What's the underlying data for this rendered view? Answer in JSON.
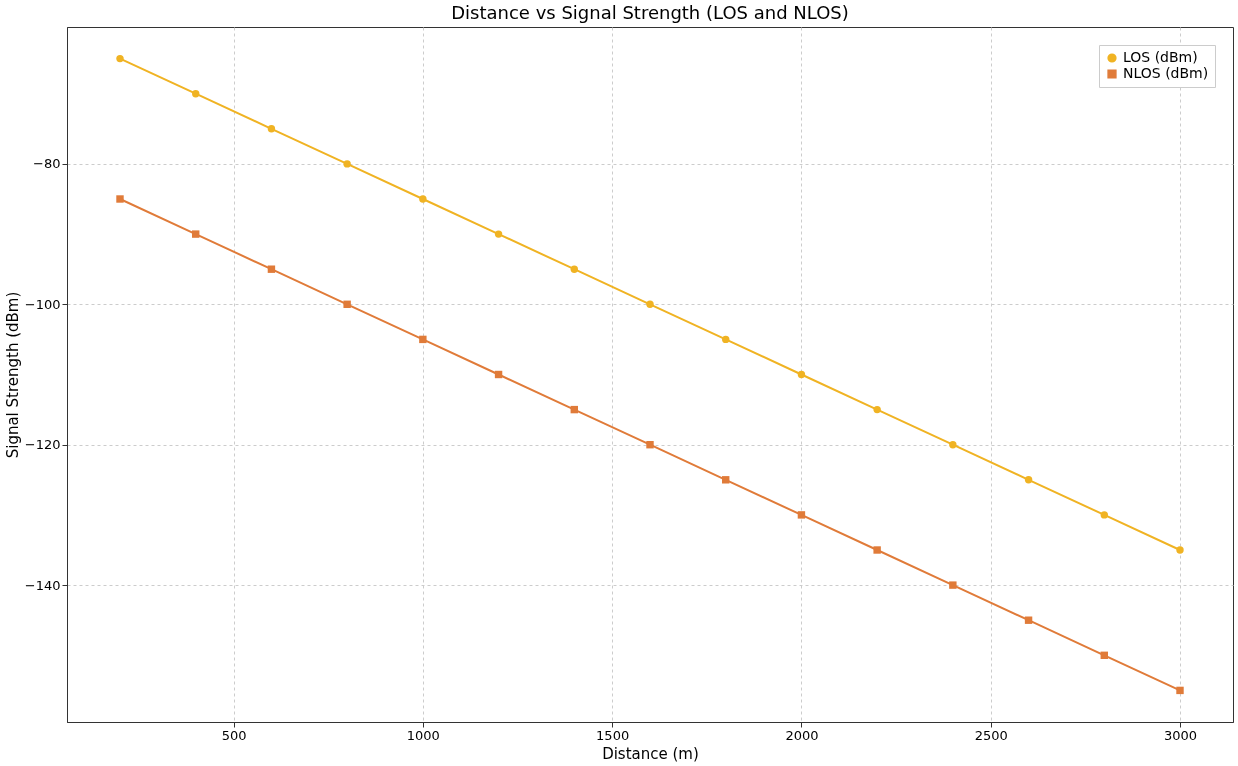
{
  "chart_data": {
    "type": "line",
    "title": "Distance vs Signal Strength (LOS and NLOS)",
    "xlabel": "Distance (m)",
    "ylabel": "Signal Strength (dBm)",
    "x": [
      200,
      400,
      600,
      800,
      1000,
      1200,
      1400,
      1600,
      1800,
      2000,
      2200,
      2400,
      2600,
      2800,
      3000
    ],
    "series": [
      {
        "name": "LOS (dBm)",
        "color": "#f0b323",
        "marker": "circle",
        "values": [
          -65,
          -70,
          -75,
          -80,
          -85,
          -90,
          -95,
          -100,
          -105,
          -110,
          -115,
          -120,
          -125,
          -130,
          -135
        ]
      },
      {
        "name": "NLOS (dBm)",
        "color": "#e07b39",
        "marker": "square",
        "values": [
          -85,
          -90,
          -95,
          -100,
          -105,
          -110,
          -115,
          -120,
          -125,
          -130,
          -135,
          -140,
          -145,
          -150,
          -155
        ]
      }
    ],
    "xlim": [
      60,
      3140
    ],
    "xticks": [
      500,
      1000,
      1500,
      2000,
      2500,
      3000
    ],
    "ylim": [
      -159.5,
      -60.5
    ],
    "yticks": [
      -80,
      -100,
      -120,
      -140
    ],
    "grid": true,
    "legend": "top right",
    "line_style": "solid"
  }
}
